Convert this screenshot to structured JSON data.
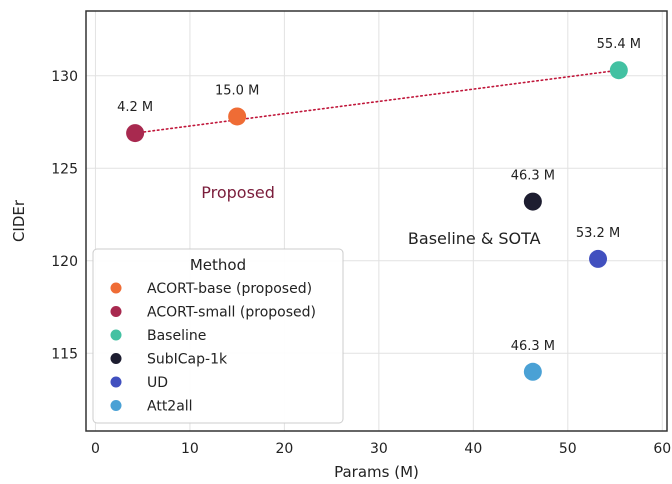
{
  "chart_data": {
    "type": "scatter",
    "xlabel": "Params (M)",
    "ylabel": "CIDEr",
    "xlim": [
      -1,
      60.5
    ],
    "ylim": [
      110.8,
      133.5
    ],
    "xticks": [
      0,
      10,
      20,
      30,
      40,
      50,
      60
    ],
    "yticks": [
      115,
      120,
      125,
      130
    ],
    "grid": true,
    "legend_position": "bottom-left",
    "legend_title": "Method",
    "series": [
      {
        "name": "ACORT-base (proposed)",
        "color": "#ef6c35",
        "x": 15.0,
        "y": 127.8,
        "label": "15.0 M"
      },
      {
        "name": "ACORT-small (proposed)",
        "color": "#a8294f",
        "x": 4.2,
        "y": 126.9,
        "label": "4.2 M"
      },
      {
        "name": "Baseline",
        "color": "#43c1a2",
        "x": 55.4,
        "y": 130.3,
        "label": "55.4 M"
      },
      {
        "name": "SubICap-1k",
        "color": "#1d1d30",
        "x": 46.3,
        "y": 123.2,
        "label": "46.3 M"
      },
      {
        "name": "UD",
        "color": "#4150bf",
        "x": 53.2,
        "y": 120.1,
        "label": "53.2 M"
      },
      {
        "name": "Att2all",
        "color": "#4aa1d5",
        "x": 46.3,
        "y": 114.0,
        "label": "46.3 M"
      }
    ],
    "trend_line": {
      "from": [
        4.2,
        126.9
      ],
      "to": [
        55.4,
        130.3
      ],
      "style": "dotted",
      "color": "#c0163a"
    },
    "annotations": [
      {
        "text": "Proposed",
        "x": 15.1,
        "y": 123.4,
        "color": "#7a1d3b"
      },
      {
        "text": "Baseline & SOTA",
        "x": 40.1,
        "y": 120.9,
        "color": "#222222"
      }
    ]
  }
}
